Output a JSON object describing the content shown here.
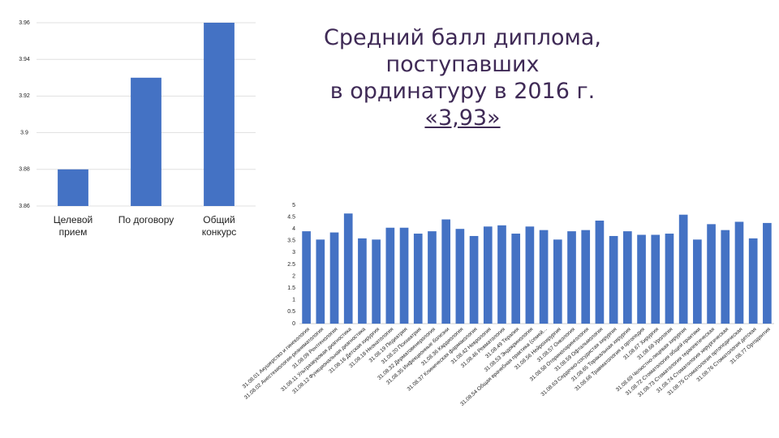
{
  "title": [
    "Средний балл диплома, поступавших",
    "в ординатуру в 2016 г.",
    "«3,93»"
  ],
  "chart_data": [
    {
      "type": "bar",
      "categories": [
        "Целевой прием",
        "По договору",
        "Общий конкурс"
      ],
      "values": [
        3.88,
        3.93,
        3.96
      ],
      "color": "#4472c4",
      "ylim": [
        3.86,
        3.96
      ],
      "yticks": [
        3.86,
        3.88,
        3.9,
        3.92,
        3.94,
        3.96
      ],
      "grid": true
    },
    {
      "type": "bar",
      "categories": [
        "31.08.01 Акушерство и гинекология",
        "31.08.02 Анестезиология-реаниматология",
        "31.08.09 Рентгенология",
        "31.08.11 Ультразвуковая диагностика",
        "31.08.12 Функциональная диагностика",
        "31.08.16 Детская хирургия",
        "31.08.18 Неонатология",
        "31.08.19 Педиатрия",
        "31.08.20 Психиатрия",
        "31.08.32 Дерматовенерология",
        "31.08.35 Инфекционные болезни",
        "31.08.36 Кардиология",
        "31.08.37 Клиническая фармакология",
        "31.08.42 Неврология",
        "31.08.46 Ревматология",
        "31.08.49 Терапия",
        "31.08.53 Эндокринология",
        "31.08.54 Общая врачебная практика (семей...",
        "31.08.56 Нейрохирургия",
        "31.08.57 Онкология",
        "31.08.58 Оториноларингология",
        "31.08.59 Офтальмология",
        "31.08.63 Сердечно-сосудистая хирургия",
        "31.08.65 Торакальная хирургия",
        "31.08.66 Травматология и ортопедия",
        "31.08.67 Хирургия",
        "31.08.68 Урология",
        "31.08.69 Челюстно-лицевая хирургия",
        "31.08.72 Стоматология общей практики",
        "31.08.73 Стоматология терапевтическая",
        "31.08.74 Стоматология хирургическая",
        "31.08.75 Стоматология ортопедическая",
        "31.08.76 Стоматология детская",
        "31.08.77 Ортодонтия"
      ],
      "values": [
        3.9,
        3.55,
        3.85,
        4.65,
        3.6,
        3.55,
        4.05,
        4.05,
        3.8,
        3.9,
        4.4,
        4.0,
        3.7,
        4.1,
        4.15,
        3.8,
        4.1,
        3.95,
        3.55,
        3.9,
        3.95,
        4.35,
        3.7,
        3.9,
        3.75,
        3.75,
        3.8,
        4.6,
        3.55,
        4.2,
        3.95,
        4.3,
        3.6,
        4.25
      ],
      "color": "#4472c4",
      "ylim": [
        0,
        5
      ],
      "yticks": [
        0,
        0.5,
        1,
        1.5,
        2,
        2.5,
        3,
        3.5,
        4,
        4.5,
        5
      ],
      "grid": false
    }
  ]
}
